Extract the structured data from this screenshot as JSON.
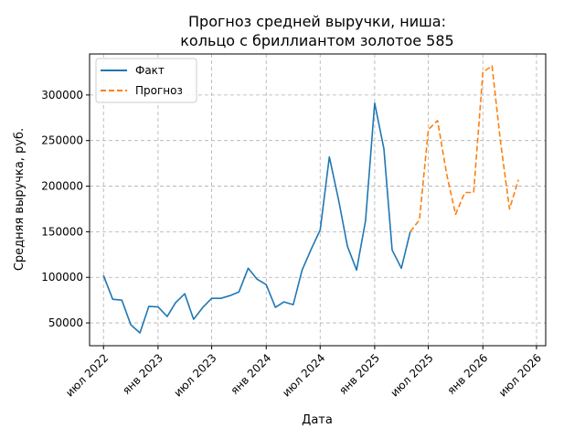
{
  "chart_data": {
    "type": "line",
    "title_lines": [
      "Прогноз средней выручки, ниша:",
      "кольцо с бриллиантом золотое 585"
    ],
    "xlabel": "Дата",
    "ylabel": "Средняя выручка, руб.",
    "grid": true,
    "legend_position": "top-left",
    "xlim": [
      "2022-05-15",
      "2026-08-01"
    ],
    "ylim": [
      25000,
      345000
    ],
    "x_ticks": [
      {
        "date": "2022-07-01",
        "label": "июл 2022"
      },
      {
        "date": "2023-01-01",
        "label": "янв 2023"
      },
      {
        "date": "2023-07-01",
        "label": "июл 2023"
      },
      {
        "date": "2024-01-01",
        "label": "янв 2024"
      },
      {
        "date": "2024-07-01",
        "label": "июл 2024"
      },
      {
        "date": "2025-01-01",
        "label": "янв 2025"
      },
      {
        "date": "2025-07-01",
        "label": "июл 2025"
      },
      {
        "date": "2026-01-01",
        "label": "янв 2026"
      },
      {
        "date": "2026-07-01",
        "label": "июл 2026"
      }
    ],
    "y_ticks": [
      50000,
      100000,
      150000,
      200000,
      250000,
      300000
    ],
    "series": [
      {
        "name": "Факт",
        "color": "#1f77b4",
        "style": "solid",
        "points": [
          {
            "x": "2022-07-01",
            "y": 102000
          },
          {
            "x": "2022-08-01",
            "y": 76000
          },
          {
            "x": "2022-09-01",
            "y": 75000
          },
          {
            "x": "2022-10-01",
            "y": 48000
          },
          {
            "x": "2022-11-01",
            "y": 39000
          },
          {
            "x": "2022-12-01",
            "y": 68000
          },
          {
            "x": "2023-01-01",
            "y": 67500
          },
          {
            "x": "2023-02-01",
            "y": 57000
          },
          {
            "x": "2023-03-01",
            "y": 72000
          },
          {
            "x": "2023-04-01",
            "y": 82000
          },
          {
            "x": "2023-05-01",
            "y": 54000
          },
          {
            "x": "2023-06-01",
            "y": 67000
          },
          {
            "x": "2023-07-01",
            "y": 77000
          },
          {
            "x": "2023-08-01",
            "y": 77000
          },
          {
            "x": "2023-09-01",
            "y": 80000
          },
          {
            "x": "2023-10-01",
            "y": 84000
          },
          {
            "x": "2023-11-01",
            "y": 110000
          },
          {
            "x": "2023-12-01",
            "y": 98000
          },
          {
            "x": "2024-01-01",
            "y": 92000
          },
          {
            "x": "2024-02-01",
            "y": 67000
          },
          {
            "x": "2024-03-01",
            "y": 73000
          },
          {
            "x": "2024-04-01",
            "y": 70000
          },
          {
            "x": "2024-05-01",
            "y": 108000
          },
          {
            "x": "2024-06-01",
            "y": 131000
          },
          {
            "x": "2024-07-01",
            "y": 152000
          },
          {
            "x": "2024-08-01",
            "y": 232000
          },
          {
            "x": "2024-09-01",
            "y": 185000
          },
          {
            "x": "2024-10-01",
            "y": 134000
          },
          {
            "x": "2024-11-01",
            "y": 108000
          },
          {
            "x": "2024-12-01",
            "y": 162000
          },
          {
            "x": "2025-01-01",
            "y": 291000
          },
          {
            "x": "2025-02-01",
            "y": 241000
          },
          {
            "x": "2025-03-01",
            "y": 130000
          },
          {
            "x": "2025-04-01",
            "y": 110000
          },
          {
            "x": "2025-05-01",
            "y": 150000
          }
        ]
      },
      {
        "name": "Прогноз",
        "color": "#ff7f0e",
        "style": "dashed",
        "points": [
          {
            "x": "2025-05-01",
            "y": 150000
          },
          {
            "x": "2025-06-01",
            "y": 163000
          },
          {
            "x": "2025-07-01",
            "y": 262000
          },
          {
            "x": "2025-08-01",
            "y": 272000
          },
          {
            "x": "2025-09-01",
            "y": 213000
          },
          {
            "x": "2025-10-01",
            "y": 169000
          },
          {
            "x": "2025-11-01",
            "y": 193000
          },
          {
            "x": "2025-12-01",
            "y": 193000
          },
          {
            "x": "2026-01-01",
            "y": 325000
          },
          {
            "x": "2026-02-01",
            "y": 332000
          },
          {
            "x": "2026-03-01",
            "y": 250000
          },
          {
            "x": "2026-04-01",
            "y": 175000
          },
          {
            "x": "2026-05-01",
            "y": 207000
          }
        ]
      }
    ]
  }
}
